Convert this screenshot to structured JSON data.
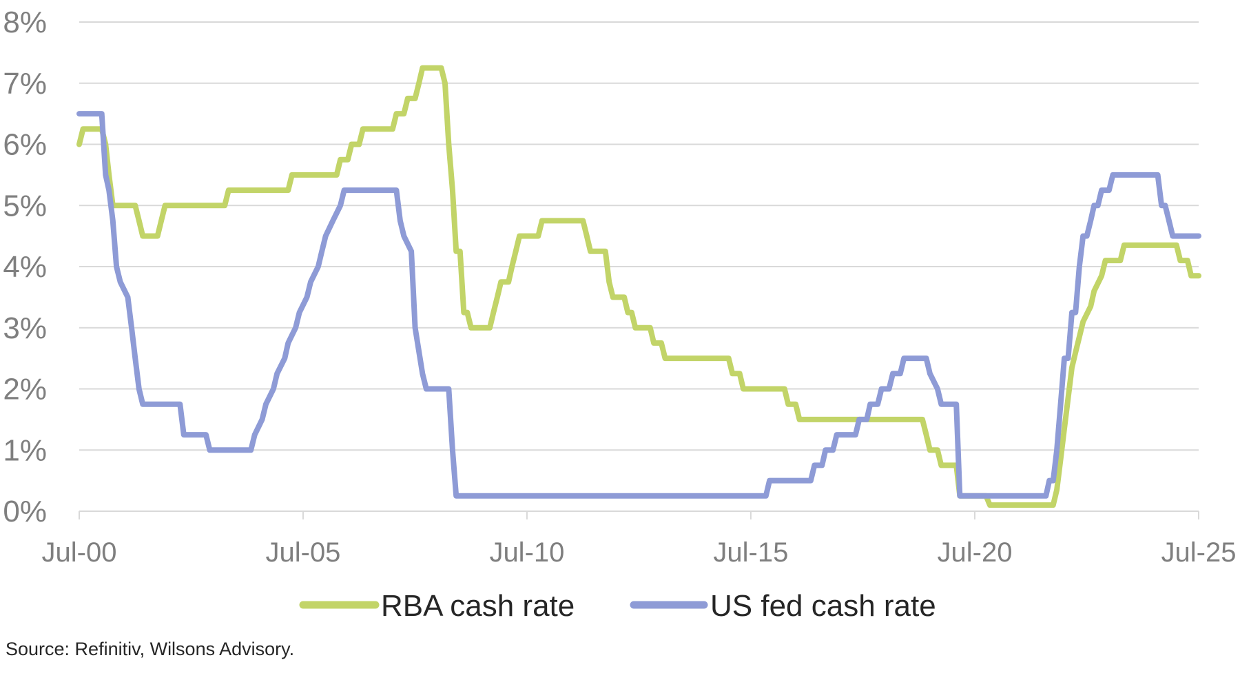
{
  "chart_data": {
    "type": "line",
    "title": "",
    "xlabel": "",
    "ylabel": "",
    "ylim": [
      0,
      8
    ],
    "xlim": [
      "2000-07-01",
      "2025-07-01"
    ],
    "yticks": [
      "0%",
      "1%",
      "2%",
      "3%",
      "4%",
      "5%",
      "6%",
      "7%",
      "8%"
    ],
    "xticks": [
      "Jul-00",
      "Jul-05",
      "Jul-10",
      "Jul-15",
      "Jul-20",
      "Jul-25"
    ],
    "grid": true,
    "legend_position": "bottom",
    "series": [
      {
        "name": "RBA cash rate",
        "color": "#c2d468",
        "points": [
          [
            "2000-07-01",
            6.0
          ],
          [
            "2000-08-01",
            6.25
          ],
          [
            "2001-01-01",
            6.25
          ],
          [
            "2001-02-01",
            6.0
          ],
          [
            "2001-03-01",
            5.5
          ],
          [
            "2001-04-01",
            5.0
          ],
          [
            "2001-10-01",
            5.0
          ],
          [
            "2001-11-01",
            4.75
          ],
          [
            "2001-12-01",
            4.5
          ],
          [
            "2002-04-01",
            4.5
          ],
          [
            "2002-05-01",
            4.75
          ],
          [
            "2002-06-01",
            5.0
          ],
          [
            "2003-10-01",
            5.0
          ],
          [
            "2003-11-01",
            5.25
          ],
          [
            "2003-12-01",
            5.25
          ],
          [
            "2005-03-01",
            5.25
          ],
          [
            "2005-04-01",
            5.5
          ],
          [
            "2006-04-01",
            5.5
          ],
          [
            "2006-05-01",
            5.75
          ],
          [
            "2006-07-01",
            5.75
          ],
          [
            "2006-08-01",
            6.0
          ],
          [
            "2006-10-01",
            6.0
          ],
          [
            "2006-11-01",
            6.25
          ],
          [
            "2007-07-01",
            6.25
          ],
          [
            "2007-08-01",
            6.5
          ],
          [
            "2007-10-01",
            6.5
          ],
          [
            "2007-11-01",
            6.75
          ],
          [
            "2008-01-01",
            6.75
          ],
          [
            "2008-02-01",
            7.0
          ],
          [
            "2008-03-01",
            7.25
          ],
          [
            "2008-08-01",
            7.25
          ],
          [
            "2008-09-01",
            7.0
          ],
          [
            "2008-10-01",
            6.0
          ],
          [
            "2008-11-01",
            5.25
          ],
          [
            "2008-12-01",
            4.25
          ],
          [
            "2009-01-01",
            4.25
          ],
          [
            "2009-02-01",
            3.25
          ],
          [
            "2009-03-01",
            3.25
          ],
          [
            "2009-04-01",
            3.0
          ],
          [
            "2009-09-01",
            3.0
          ],
          [
            "2009-10-01",
            3.25
          ],
          [
            "2009-11-01",
            3.5
          ],
          [
            "2009-12-01",
            3.75
          ],
          [
            "2010-02-01",
            3.75
          ],
          [
            "2010-03-01",
            4.0
          ],
          [
            "2010-04-01",
            4.25
          ],
          [
            "2010-05-01",
            4.5
          ],
          [
            "2010-10-01",
            4.5
          ],
          [
            "2010-11-01",
            4.75
          ],
          [
            "2011-10-01",
            4.75
          ],
          [
            "2011-11-01",
            4.5
          ],
          [
            "2011-12-01",
            4.25
          ],
          [
            "2012-04-01",
            4.25
          ],
          [
            "2012-05-01",
            3.75
          ],
          [
            "2012-06-01",
            3.5
          ],
          [
            "2012-09-01",
            3.5
          ],
          [
            "2012-10-01",
            3.25
          ],
          [
            "2012-11-01",
            3.25
          ],
          [
            "2012-12-01",
            3.0
          ],
          [
            "2013-04-01",
            3.0
          ],
          [
            "2013-05-01",
            2.75
          ],
          [
            "2013-07-01",
            2.75
          ],
          [
            "2013-08-01",
            2.5
          ],
          [
            "2015-01-01",
            2.5
          ],
          [
            "2015-02-01",
            2.25
          ],
          [
            "2015-04-01",
            2.25
          ],
          [
            "2015-05-01",
            2.0
          ],
          [
            "2016-04-01",
            2.0
          ],
          [
            "2016-05-01",
            1.75
          ],
          [
            "2016-07-01",
            1.75
          ],
          [
            "2016-08-01",
            1.5
          ],
          [
            "2019-05-01",
            1.5
          ],
          [
            "2019-06-01",
            1.25
          ],
          [
            "2019-07-01",
            1.0
          ],
          [
            "2019-09-01",
            1.0
          ],
          [
            "2019-10-01",
            0.75
          ],
          [
            "2020-02-01",
            0.75
          ],
          [
            "2020-03-01",
            0.25
          ],
          [
            "2020-10-01",
            0.25
          ],
          [
            "2020-11-01",
            0.1
          ],
          [
            "2022-04-01",
            0.1
          ],
          [
            "2022-05-01",
            0.35
          ],
          [
            "2022-06-01",
            0.85
          ],
          [
            "2022-07-01",
            1.35
          ],
          [
            "2022-08-01",
            1.85
          ],
          [
            "2022-09-01",
            2.35
          ],
          [
            "2022-10-01",
            2.6
          ],
          [
            "2022-11-01",
            2.85
          ],
          [
            "2022-12-01",
            3.1
          ],
          [
            "2023-02-01",
            3.35
          ],
          [
            "2023-03-01",
            3.6
          ],
          [
            "2023-05-01",
            3.85
          ],
          [
            "2023-06-01",
            4.1
          ],
          [
            "2023-10-01",
            4.1
          ],
          [
            "2023-11-01",
            4.35
          ],
          [
            "2025-01-01",
            4.35
          ],
          [
            "2025-02-01",
            4.1
          ],
          [
            "2025-04-01",
            4.1
          ],
          [
            "2025-05-01",
            3.85
          ],
          [
            "2025-07-01",
            3.85
          ]
        ]
      },
      {
        "name": "US fed cash rate",
        "color": "#8e9bd6",
        "points": [
          [
            "2000-07-01",
            6.5
          ],
          [
            "2001-01-01",
            6.5
          ],
          [
            "2001-02-01",
            5.5
          ],
          [
            "2001-03-01",
            5.25
          ],
          [
            "2001-04-01",
            4.75
          ],
          [
            "2001-05-01",
            4.0
          ],
          [
            "2001-06-01",
            3.75
          ],
          [
            "2001-08-01",
            3.5
          ],
          [
            "2001-09-01",
            3.0
          ],
          [
            "2001-10-01",
            2.5
          ],
          [
            "2001-11-01",
            2.0
          ],
          [
            "2001-12-01",
            1.75
          ],
          [
            "2002-10-01",
            1.75
          ],
          [
            "2002-11-01",
            1.25
          ],
          [
            "2003-05-01",
            1.25
          ],
          [
            "2003-06-01",
            1.0
          ],
          [
            "2004-05-01",
            1.0
          ],
          [
            "2004-06-01",
            1.25
          ],
          [
            "2004-08-01",
            1.5
          ],
          [
            "2004-09-01",
            1.75
          ],
          [
            "2004-11-01",
            2.0
          ],
          [
            "2004-12-01",
            2.25
          ],
          [
            "2005-02-01",
            2.5
          ],
          [
            "2005-03-01",
            2.75
          ],
          [
            "2005-05-01",
            3.0
          ],
          [
            "2005-06-01",
            3.25
          ],
          [
            "2005-08-01",
            3.5
          ],
          [
            "2005-09-01",
            3.75
          ],
          [
            "2005-11-01",
            4.0
          ],
          [
            "2005-12-01",
            4.25
          ],
          [
            "2006-01-01",
            4.5
          ],
          [
            "2006-03-01",
            4.75
          ],
          [
            "2006-05-01",
            5.0
          ],
          [
            "2006-06-01",
            5.25
          ],
          [
            "2007-08-01",
            5.25
          ],
          [
            "2007-09-01",
            4.75
          ],
          [
            "2007-10-01",
            4.5
          ],
          [
            "2007-12-01",
            4.25
          ],
          [
            "2008-01-01",
            3.0
          ],
          [
            "2008-03-01",
            2.25
          ],
          [
            "2008-04-01",
            2.0
          ],
          [
            "2008-10-01",
            2.0
          ],
          [
            "2008-11-01",
            1.0
          ],
          [
            "2008-12-01",
            0.25
          ],
          [
            "2015-11-01",
            0.25
          ],
          [
            "2015-12-01",
            0.5
          ],
          [
            "2016-11-01",
            0.5
          ],
          [
            "2016-12-01",
            0.75
          ],
          [
            "2017-02-01",
            0.75
          ],
          [
            "2017-03-01",
            1.0
          ],
          [
            "2017-05-01",
            1.0
          ],
          [
            "2017-06-01",
            1.25
          ],
          [
            "2017-11-01",
            1.25
          ],
          [
            "2017-12-01",
            1.5
          ],
          [
            "2018-02-01",
            1.5
          ],
          [
            "2018-03-01",
            1.75
          ],
          [
            "2018-05-01",
            1.75
          ],
          [
            "2018-06-01",
            2.0
          ],
          [
            "2018-08-01",
            2.0
          ],
          [
            "2018-09-01",
            2.25
          ],
          [
            "2018-11-01",
            2.25
          ],
          [
            "2018-12-01",
            2.5
          ],
          [
            "2019-06-01",
            2.5
          ],
          [
            "2019-07-01",
            2.25
          ],
          [
            "2019-09-01",
            2.0
          ],
          [
            "2019-10-01",
            1.75
          ],
          [
            "2020-02-01",
            1.75
          ],
          [
            "2020-03-01",
            0.25
          ],
          [
            "2022-02-01",
            0.25
          ],
          [
            "2022-03-01",
            0.5
          ],
          [
            "2022-04-01",
            0.5
          ],
          [
            "2022-05-01",
            1.0
          ],
          [
            "2022-06-01",
            1.75
          ],
          [
            "2022-07-01",
            2.5
          ],
          [
            "2022-08-01",
            2.5
          ],
          [
            "2022-09-01",
            3.25
          ],
          [
            "2022-10-01",
            3.25
          ],
          [
            "2022-11-01",
            4.0
          ],
          [
            "2022-12-01",
            4.5
          ],
          [
            "2023-01-01",
            4.5
          ],
          [
            "2023-02-01",
            4.75
          ],
          [
            "2023-03-01",
            5.0
          ],
          [
            "2023-04-01",
            5.0
          ],
          [
            "2023-05-01",
            5.25
          ],
          [
            "2023-07-01",
            5.25
          ],
          [
            "2023-08-01",
            5.5
          ],
          [
            "2024-08-01",
            5.5
          ],
          [
            "2024-09-01",
            5.0
          ],
          [
            "2024-10-01",
            5.0
          ],
          [
            "2024-11-01",
            4.75
          ],
          [
            "2024-12-01",
            4.5
          ],
          [
            "2025-07-01",
            4.5
          ]
        ]
      }
    ]
  },
  "source_note": "Source: Refinitiv, Wilsons Advisory."
}
